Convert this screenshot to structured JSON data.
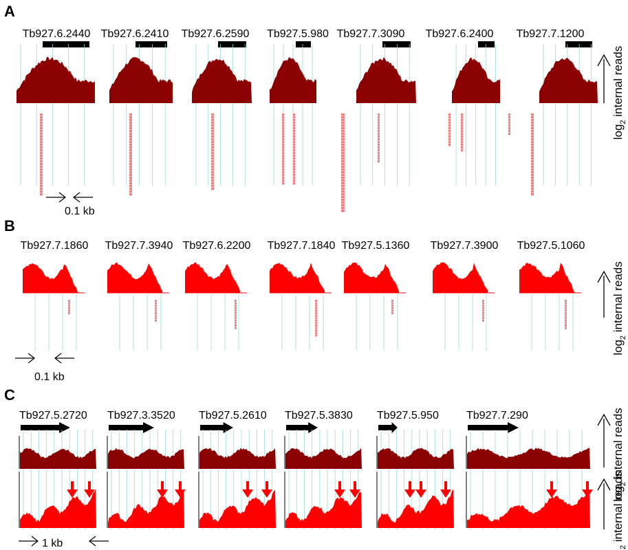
{
  "panels": [
    {
      "letter": "A",
      "genes": [
        "Tb927.6.2440",
        "Tb927.6.2410",
        "Tb927.6.2590",
        "Tb927.5.980",
        "Tb927.7.3090",
        "Tb927.6.2400",
        "Tb927.7.1200"
      ],
      "scale": "0.1 kb",
      "axis_label": "internal reads",
      "axis_prefix": "log",
      "axis_sub": "2"
    },
    {
      "letter": "B",
      "genes": [
        "Tb927.7.1860",
        "Tb927.7.3940",
        "Tb927.6.2200",
        "Tb927.7.1840",
        "Tb927.5.1360",
        "Tb927.7.3900",
        "Tb927.5.1060"
      ],
      "scale": "0.1 kb",
      "axis_label": "internal reads",
      "axis_prefix": "log",
      "axis_sub": "2"
    },
    {
      "letter": "C",
      "genes": [
        "Tb927.5.2720",
        "Tb927.3.3520",
        "Tb927.5.2610",
        "Tb927.5.3830",
        "Tb927.5.950",
        "Tb927.7.290"
      ],
      "scale": "1 kb",
      "axis_label": "internal reads",
      "axis_prefix": "log",
      "axis_sub": "2"
    }
  ],
  "colors": {
    "dark_red": "#8b0000",
    "red": "#ff0000",
    "read": "#f08080",
    "guide": "#9fd8d8",
    "black": "#000000"
  }
}
